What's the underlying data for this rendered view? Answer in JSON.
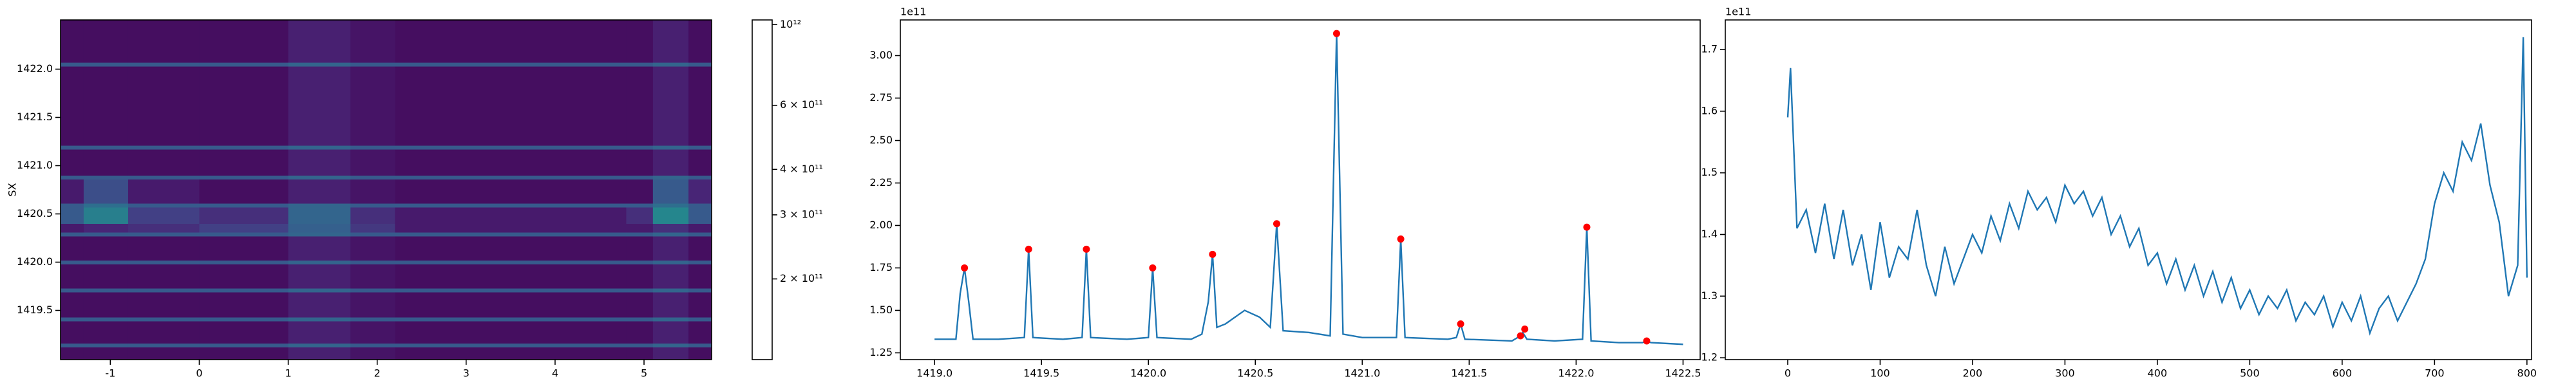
{
  "chart_data": [
    {
      "type": "heatmap",
      "ylabel": "SX",
      "x_edges": [
        -1.56,
        -1.3,
        -0.8,
        0,
        1.0,
        1.7,
        2.2,
        4.8,
        5.1,
        5.5,
        5.76
      ],
      "y_edges": [
        1418.99,
        1419.12,
        1419.16,
        1419.39,
        1419.43,
        1419.69,
        1419.73,
        1419.98,
        1420.02,
        1420.27,
        1420.31,
        1420.4,
        1420.57,
        1420.61,
        1420.86,
        1420.9,
        1421.17,
        1421.21,
        1422.03,
        1422.07,
        1422.51
      ],
      "z": [
        [
          130000000000.0,
          130000000000.0,
          130000000000.0,
          130000000000.0,
          145000000000.0,
          135000000000.0,
          130000000000.0,
          130000000000.0,
          145000000000.0,
          130000000000.0
        ],
        [
          220000000000.0,
          220000000000.0,
          220000000000.0,
          220000000000.0,
          240000000000.0,
          220000000000.0,
          220000000000.0,
          220000000000.0,
          240000000000.0,
          220000000000.0
        ],
        [
          130000000000.0,
          130000000000.0,
          130000000000.0,
          130000000000.0,
          145000000000.0,
          135000000000.0,
          130000000000.0,
          130000000000.0,
          145000000000.0,
          130000000000.0
        ],
        [
          220000000000.0,
          220000000000.0,
          220000000000.0,
          220000000000.0,
          240000000000.0,
          220000000000.0,
          220000000000.0,
          220000000000.0,
          240000000000.0,
          220000000000.0
        ],
        [
          130000000000.0,
          130000000000.0,
          130000000000.0,
          130000000000.0,
          145000000000.0,
          135000000000.0,
          130000000000.0,
          130000000000.0,
          145000000000.0,
          130000000000.0
        ],
        [
          220000000000.0,
          220000000000.0,
          220000000000.0,
          220000000000.0,
          240000000000.0,
          220000000000.0,
          220000000000.0,
          220000000000.0,
          240000000000.0,
          220000000000.0
        ],
        [
          130000000000.0,
          130000000000.0,
          130000000000.0,
          130000000000.0,
          145000000000.0,
          135000000000.0,
          130000000000.0,
          130000000000.0,
          145000000000.0,
          130000000000.0
        ],
        [
          220000000000.0,
          220000000000.0,
          220000000000.0,
          220000000000.0,
          240000000000.0,
          220000000000.0,
          220000000000.0,
          220000000000.0,
          240000000000.0,
          220000000000.0
        ],
        [
          130000000000.0,
          130000000000.0,
          130000000000.0,
          130000000000.0,
          145000000000.0,
          135000000000.0,
          130000000000.0,
          130000000000.0,
          145000000000.0,
          130000000000.0
        ],
        [
          220000000000.0,
          220000000000.0,
          220000000000.0,
          220000000000.0,
          240000000000.0,
          220000000000.0,
          220000000000.0,
          220000000000.0,
          240000000000.0,
          220000000000.0
        ],
        [
          140000000000.0,
          150000000000.0,
          160000000000.0,
          180000000000.0,
          230000000000.0,
          170000000000.0,
          140000000000.0,
          140000000000.0,
          160000000000.0,
          140000000000.0
        ],
        [
          220000000000.0,
          300000000000.0,
          180000000000.0,
          160000000000.0,
          240000000000.0,
          160000000000.0,
          140000000000.0,
          160000000000.0,
          320000000000.0,
          220000000000.0
        ],
        [
          220000000000.0,
          260000000000.0,
          220000000000.0,
          220000000000.0,
          240000000000.0,
          220000000000.0,
          220000000000.0,
          220000000000.0,
          260000000000.0,
          220000000000.0
        ],
        [
          140000000000.0,
          200000000000.0,
          140000000000.0,
          130000000000.0,
          145000000000.0,
          135000000000.0,
          130000000000.0,
          130000000000.0,
          220000000000.0,
          150000000000.0
        ],
        [
          220000000000.0,
          220000000000.0,
          220000000000.0,
          220000000000.0,
          240000000000.0,
          220000000000.0,
          220000000000.0,
          220000000000.0,
          240000000000.0,
          220000000000.0
        ],
        [
          130000000000.0,
          130000000000.0,
          130000000000.0,
          130000000000.0,
          145000000000.0,
          135000000000.0,
          130000000000.0,
          130000000000.0,
          145000000000.0,
          130000000000.0
        ],
        [
          220000000000.0,
          220000000000.0,
          220000000000.0,
          220000000000.0,
          240000000000.0,
          220000000000.0,
          220000000000.0,
          220000000000.0,
          240000000000.0,
          220000000000.0
        ],
        [
          130000000000.0,
          130000000000.0,
          130000000000.0,
          130000000000.0,
          145000000000.0,
          135000000000.0,
          130000000000.0,
          130000000000.0,
          145000000000.0,
          130000000000.0
        ],
        [
          220000000000.0,
          220000000000.0,
          220000000000.0,
          220000000000.0,
          240000000000.0,
          220000000000.0,
          220000000000.0,
          220000000000.0,
          240000000000.0,
          220000000000.0
        ],
        [
          130000000000.0,
          130000000000.0,
          130000000000.0,
          130000000000.0,
          145000000000.0,
          135000000000.0,
          130000000000.0,
          130000000000.0,
          145000000000.0,
          130000000000.0
        ]
      ],
      "xlim": [
        -1.56,
        5.76
      ],
      "ylim": [
        1418.99,
        1422.51
      ],
      "xticks": [
        -1,
        0,
        1,
        2,
        3,
        4,
        5
      ],
      "yticks": [
        1419.5,
        {
          "value": 1420,
          "label": "1420.0"
        },
        1420.5,
        {
          "value": 1421,
          "label": "1421.0"
        },
        1421.5,
        {
          "value": 1422,
          "label": "1422.0"
        }
      ],
      "colorbar": {
        "colormap": "viridis",
        "scale": "log",
        "clim": [
          120000000000.0,
          1030000000000.0
        ],
        "ticks": [
          {
            "value": 200000000000.0,
            "label": "2 × 10¹¹"
          },
          {
            "value": 300000000000.0,
            "label": "3 × 10¹¹"
          },
          {
            "value": 400000000000.0,
            "label": "4 × 10¹¹"
          },
          {
            "value": 600000000000.0,
            "label": "6 × 10¹¹"
          },
          {
            "value": 1000000000000.0,
            "label": "10¹²"
          }
        ]
      }
    },
    {
      "type": "line",
      "offset_text": "1e11",
      "xlim": [
        1418.84,
        1422.58
      ],
      "ylim": [
        1.21,
        3.21
      ],
      "xticks": [
        {
          "value": 1419,
          "label": "1419.0"
        },
        1419.5,
        {
          "value": 1420,
          "label": "1420.0"
        },
        1420.5,
        {
          "value": 1421,
          "label": "1421.0"
        },
        1421.5,
        {
          "value": 1422,
          "label": "1422.0"
        },
        1422.5
      ],
      "yticks": [
        1.25,
        {
          "value": 1.5,
          "label": "1.50"
        },
        1.75,
        {
          "value": 2,
          "label": "2.00"
        },
        2.25,
        {
          "value": 2.5,
          "label": "2.50"
        },
        2.75,
        {
          "value": 3,
          "label": "3.00"
        }
      ],
      "series": [
        {
          "style": "line",
          "color": "#1f77b4",
          "x": [
            1419.0,
            1419.1,
            1419.12,
            1419.14,
            1419.16,
            1419.18,
            1419.3,
            1419.42,
            1419.44,
            1419.46,
            1419.6,
            1419.69,
            1419.71,
            1419.73,
            1419.9,
            1420.0,
            1420.02,
            1420.04,
            1420.2,
            1420.25,
            1420.28,
            1420.3,
            1420.32,
            1420.36,
            1420.45,
            1420.52,
            1420.57,
            1420.6,
            1420.63,
            1420.75,
            1420.85,
            1420.88,
            1420.91,
            1421.0,
            1421.16,
            1421.18,
            1421.2,
            1421.4,
            1421.44,
            1421.46,
            1421.48,
            1421.7,
            1421.74,
            1421.75,
            1421.77,
            1421.9,
            1422.03,
            1422.05,
            1422.07,
            1422.2,
            1422.31,
            1422.33,
            1422.35,
            1422.5
          ],
          "values": [
            1.33,
            1.33,
            1.6,
            1.75,
            1.55,
            1.33,
            1.33,
            1.34,
            1.86,
            1.34,
            1.33,
            1.34,
            1.86,
            1.34,
            1.33,
            1.34,
            1.75,
            1.34,
            1.33,
            1.36,
            1.55,
            1.83,
            1.4,
            1.42,
            1.5,
            1.46,
            1.4,
            2.01,
            1.38,
            1.37,
            1.35,
            3.13,
            1.36,
            1.34,
            1.34,
            1.92,
            1.34,
            1.33,
            1.34,
            1.42,
            1.33,
            1.32,
            1.35,
            1.37,
            1.33,
            1.32,
            1.33,
            1.99,
            1.32,
            1.31,
            1.31,
            1.32,
            1.31,
            1.3
          ]
        },
        {
          "style": "markers",
          "color": "#ff0000",
          "x": [
            1419.14,
            1419.44,
            1419.71,
            1420.02,
            1420.3,
            1420.6,
            1420.88,
            1421.18,
            1421.46,
            1421.74,
            1421.76,
            1422.05,
            1422.33
          ],
          "values": [
            1.75,
            1.86,
            1.86,
            1.75,
            1.83,
            2.01,
            3.13,
            1.92,
            1.42,
            1.35,
            1.39,
            1.99,
            1.32
          ]
        }
      ]
    },
    {
      "type": "line",
      "offset_text": "1e11",
      "xlim": [
        -67.6,
        805
      ],
      "ylim": [
        1.197,
        1.748
      ],
      "xticks": [
        0,
        100,
        200,
        300,
        400,
        500,
        600,
        700,
        800
      ],
      "yticks": [
        1.2,
        1.3,
        1.4,
        1.5,
        1.6,
        1.7
      ],
      "series": [
        {
          "style": "line",
          "color": "#1f77b4",
          "x": [
            0,
            3,
            10,
            20,
            30,
            40,
            50,
            60,
            70,
            80,
            90,
            100,
            110,
            120,
            130,
            140,
            150,
            160,
            170,
            180,
            190,
            200,
            210,
            220,
            230,
            240,
            250,
            260,
            270,
            280,
            290,
            300,
            310,
            320,
            330,
            340,
            350,
            360,
            370,
            380,
            390,
            400,
            410,
            420,
            430,
            440,
            450,
            460,
            470,
            480,
            490,
            500,
            510,
            520,
            530,
            540,
            550,
            560,
            570,
            580,
            590,
            600,
            610,
            620,
            630,
            640,
            650,
            660,
            670,
            680,
            690,
            700,
            710,
            720,
            730,
            740,
            750,
            760,
            770,
            780,
            790,
            796,
            800
          ],
          "values": [
            1.59,
            1.67,
            1.41,
            1.44,
            1.37,
            1.45,
            1.36,
            1.44,
            1.35,
            1.4,
            1.31,
            1.42,
            1.33,
            1.38,
            1.36,
            1.44,
            1.35,
            1.3,
            1.38,
            1.32,
            1.36,
            1.4,
            1.37,
            1.43,
            1.39,
            1.45,
            1.41,
            1.47,
            1.44,
            1.46,
            1.42,
            1.48,
            1.45,
            1.47,
            1.43,
            1.46,
            1.4,
            1.43,
            1.38,
            1.41,
            1.35,
            1.37,
            1.32,
            1.36,
            1.31,
            1.35,
            1.3,
            1.34,
            1.29,
            1.33,
            1.28,
            1.31,
            1.27,
            1.3,
            1.28,
            1.31,
            1.26,
            1.29,
            1.27,
            1.3,
            1.25,
            1.29,
            1.26,
            1.3,
            1.24,
            1.28,
            1.3,
            1.26,
            1.29,
            1.32,
            1.36,
            1.45,
            1.5,
            1.47,
            1.55,
            1.52,
            1.58,
            1.48,
            1.42,
            1.3,
            1.35,
            1.72,
            1.33
          ]
        }
      ]
    }
  ]
}
